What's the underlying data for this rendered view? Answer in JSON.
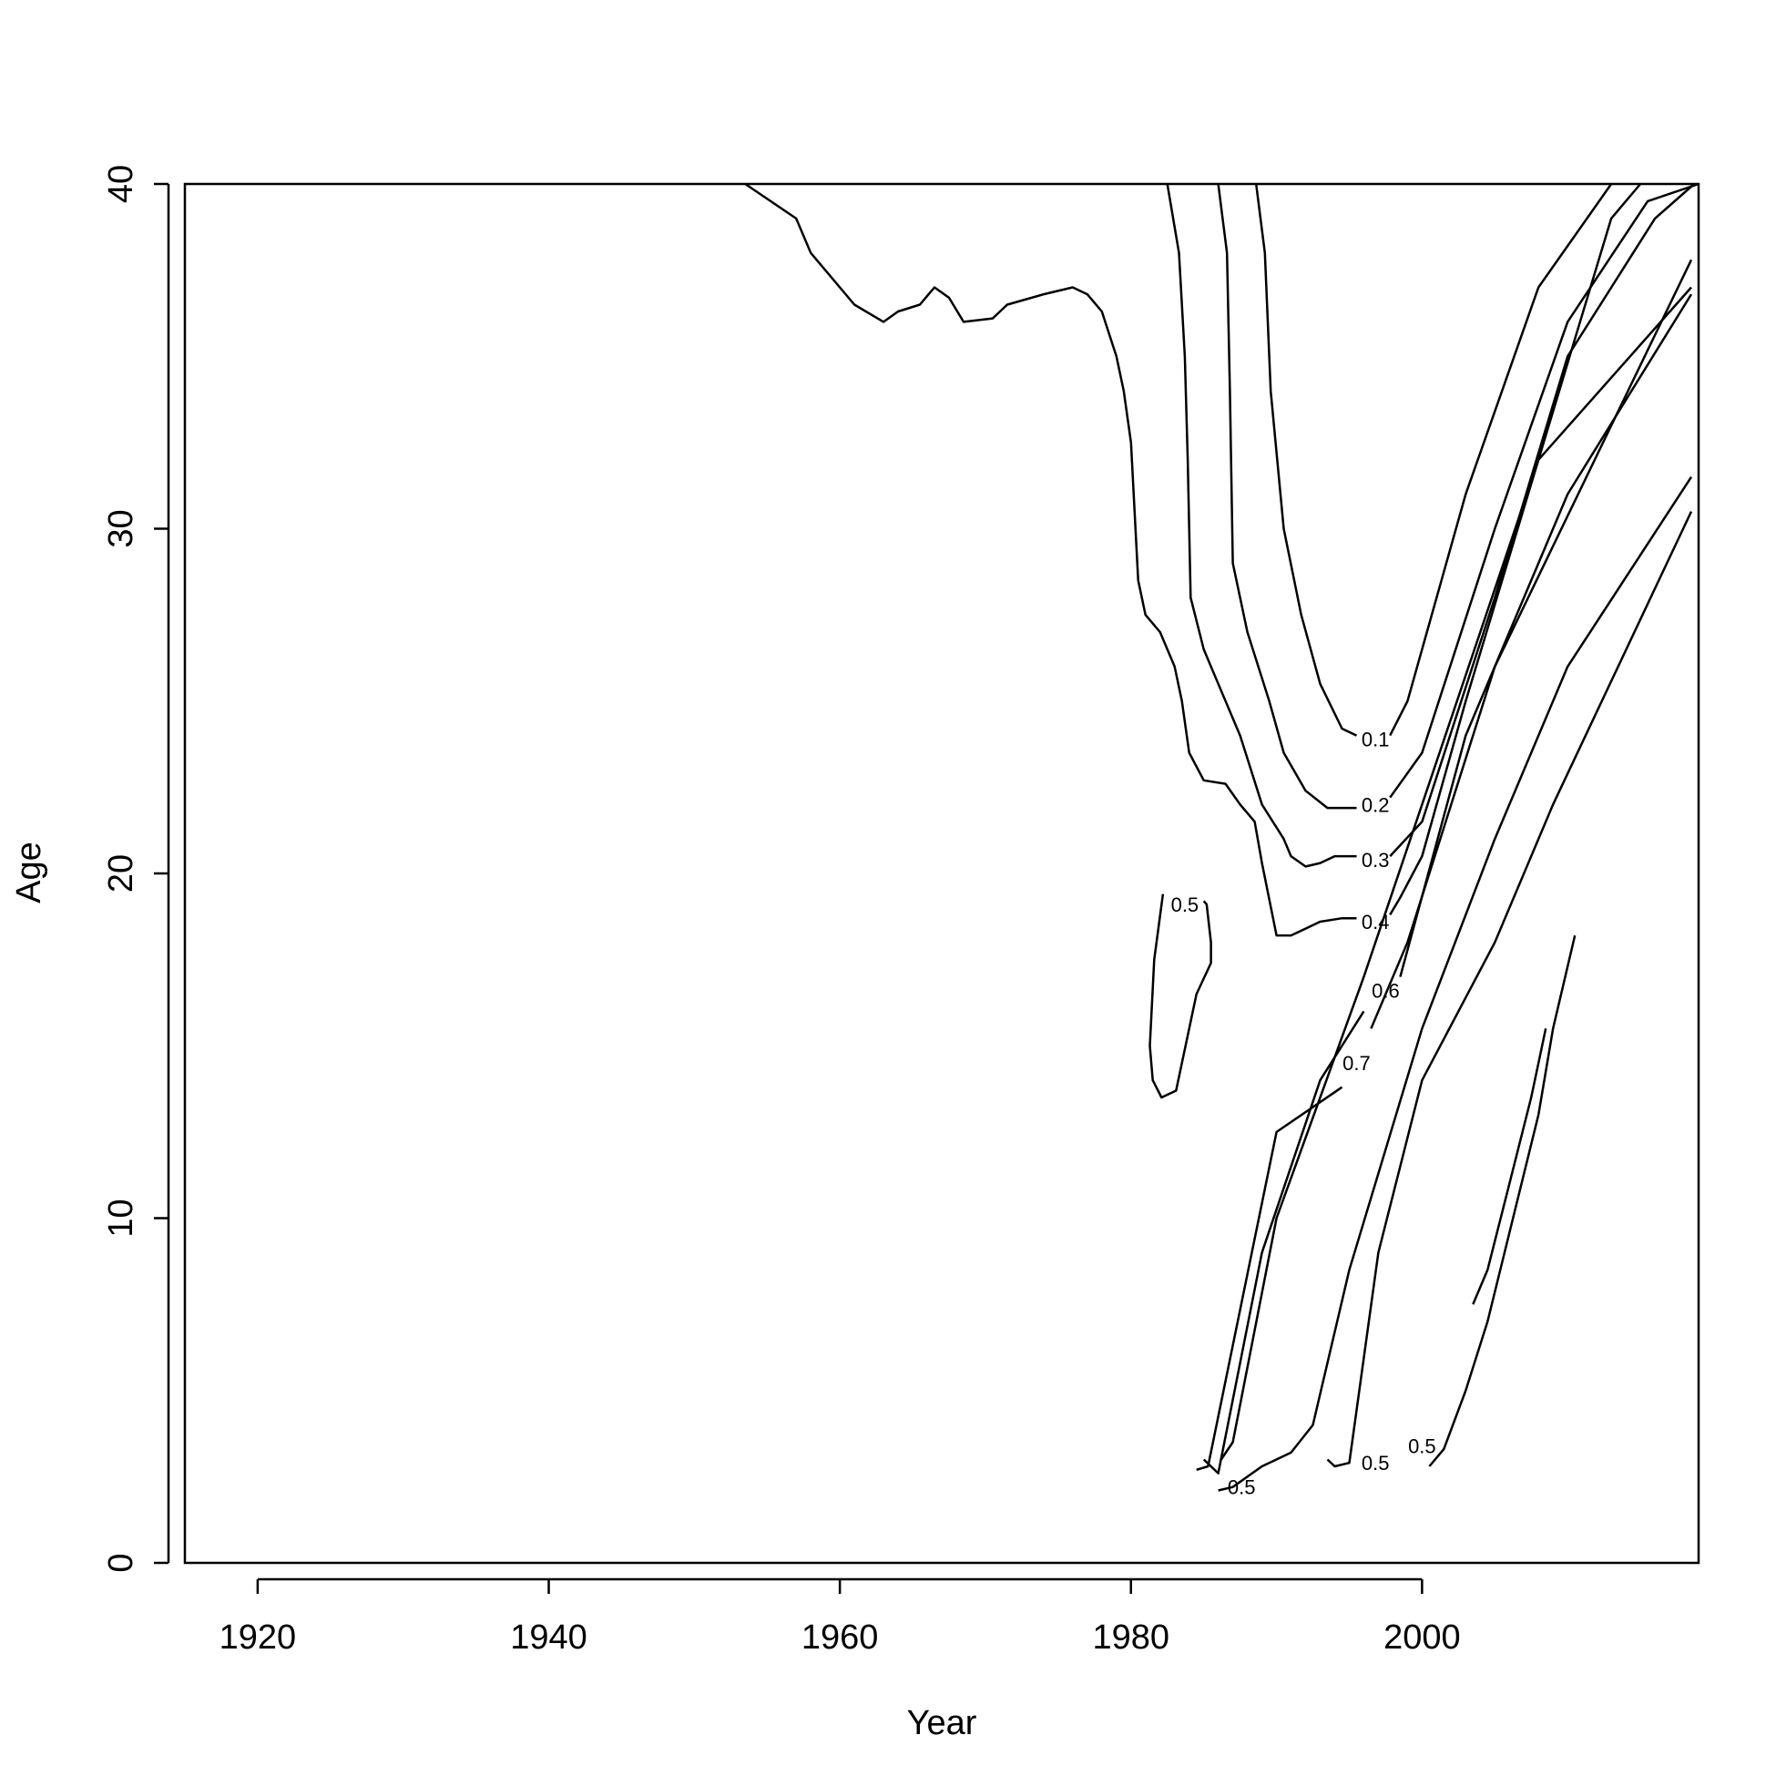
{
  "chart_data": {
    "type": "contour",
    "title": "",
    "xlabel": "Year",
    "ylabel": "Age",
    "xlim": [
      1915,
      2019
    ],
    "ylim": [
      0,
      40
    ],
    "x_ticks": [
      1920,
      1940,
      1960,
      1980,
      2000
    ],
    "y_ticks": [
      0,
      10,
      20,
      30,
      40
    ],
    "grid": false,
    "legend": "none",
    "contour_levels": [
      "0.1",
      "0.2",
      "0.3",
      "0.4",
      "0.5",
      "0.6",
      "0.7"
    ],
    "contours": [
      {
        "level": "",
        "points": [
          [
            1953.5,
            40
          ],
          [
            1957,
            39
          ],
          [
            1958,
            38
          ],
          [
            1961,
            36.5
          ],
          [
            1963,
            36
          ],
          [
            1964,
            36.3
          ],
          [
            1965.5,
            36.5
          ],
          [
            1966.5,
            37
          ],
          [
            1967.5,
            36.7
          ],
          [
            1968.5,
            36
          ],
          [
            1970.5,
            36.1
          ],
          [
            1971.5,
            36.5
          ],
          [
            1974,
            36.8
          ],
          [
            1976,
            37
          ],
          [
            1977,
            36.8
          ],
          [
            1978,
            36.3
          ],
          [
            1979,
            35
          ],
          [
            1979.5,
            34
          ],
          [
            1980,
            32.5
          ],
          [
            1980.5,
            28.5
          ],
          [
            1981,
            27.5
          ],
          [
            1982,
            27
          ],
          [
            1983,
            26
          ],
          [
            1983.5,
            25
          ],
          [
            1984,
            23.5
          ],
          [
            1985,
            22.7
          ],
          [
            1986.5,
            22.6
          ],
          [
            1987.5,
            22
          ],
          [
            1988.5,
            21.5
          ],
          [
            1989,
            20.3
          ],
          [
            1990,
            18.2
          ],
          [
            1991,
            18.2
          ],
          [
            1992,
            18.4
          ],
          [
            1993,
            18.6
          ],
          [
            1994.5,
            18.7
          ],
          [
            1995.5,
            18.7
          ]
        ]
      },
      {
        "level": "0.4",
        "label_at": [
          1996.8,
          18.6
        ],
        "points": [
          [
            1997.8,
            18.8
          ],
          [
            1998.5,
            19.3
          ],
          [
            2000,
            20.5
          ],
          [
            2003,
            25
          ],
          [
            2008,
            32
          ],
          [
            2013,
            39
          ],
          [
            2015,
            40
          ]
        ]
      },
      {
        "level": "",
        "points": [
          [
            1982.5,
            40
          ],
          [
            1983.3,
            38
          ],
          [
            1983.7,
            35
          ],
          [
            1983.9,
            32
          ],
          [
            1984.1,
            28
          ],
          [
            1985,
            26.5
          ],
          [
            1986,
            25.5
          ],
          [
            1987.5,
            24
          ],
          [
            1989,
            22
          ],
          [
            1990.5,
            21
          ],
          [
            1991,
            20.5
          ],
          [
            1992,
            20.2
          ],
          [
            1993,
            20.3
          ],
          [
            1994,
            20.5
          ],
          [
            1995.5,
            20.5
          ]
        ]
      },
      {
        "level": "0.3",
        "label_at": [
          1996.8,
          20.4
        ],
        "points": [
          [
            1997.8,
            20.5
          ],
          [
            2000,
            21.5
          ],
          [
            2005,
            28
          ],
          [
            2010,
            35
          ],
          [
            2016,
            39
          ],
          [
            2018.7,
            40
          ]
        ]
      },
      {
        "level": "",
        "points": [
          [
            1986,
            40
          ],
          [
            1986.6,
            38
          ],
          [
            1986.8,
            34
          ],
          [
            1987,
            29
          ],
          [
            1988,
            27
          ],
          [
            1989.5,
            25
          ],
          [
            1990.5,
            23.5
          ],
          [
            1992,
            22.4
          ],
          [
            1993.5,
            21.9
          ],
          [
            1995.5,
            21.9
          ]
        ]
      },
      {
        "level": "0.2",
        "label_at": [
          1996.8,
          22.0
        ],
        "points": [
          [
            1997.8,
            22.2
          ],
          [
            2000,
            23.5
          ],
          [
            2005,
            30
          ],
          [
            2010,
            36
          ],
          [
            2015.5,
            39.5
          ],
          [
            2019,
            40
          ]
        ]
      },
      {
        "level": "",
        "points": [
          [
            1988.6,
            40
          ],
          [
            1989.2,
            38
          ],
          [
            1989.6,
            34
          ],
          [
            1990.5,
            30
          ],
          [
            1991.7,
            27.5
          ],
          [
            1993,
            25.5
          ],
          [
            1994.5,
            24.2
          ],
          [
            1995.5,
            24
          ]
        ]
      },
      {
        "level": "0.1",
        "label_at": [
          1996.8,
          23.9
        ],
        "points": [
          [
            1997.8,
            24
          ],
          [
            1999,
            25
          ],
          [
            2003,
            31
          ],
          [
            2008,
            37
          ],
          [
            2013,
            40
          ]
        ]
      },
      {
        "level": "0.5",
        "label_at": [
          1983.7,
          19.1
        ],
        "points": [
          [
            1982.2,
            19.4
          ],
          [
            1981.6,
            17.5
          ],
          [
            1981.3,
            15
          ],
          [
            1981.5,
            14
          ],
          [
            1982.1,
            13.5
          ],
          [
            1983.1,
            13.7
          ],
          [
            1984.5,
            16.5
          ],
          [
            1985.5,
            17.4
          ],
          [
            1985.5,
            18
          ],
          [
            1985.2,
            19.1
          ],
          [
            1985,
            19.2
          ]
        ]
      },
      {
        "level": "0.7",
        "label_at": [
          1995.5,
          14.5
        ],
        "points": [
          [
            1984.5,
            2.7
          ],
          [
            1985.3,
            2.8
          ],
          [
            1990,
            12.5
          ],
          [
            1994.5,
            13.8
          ]
        ]
      },
      {
        "level": "",
        "points": [
          [
            1996.5,
            15.5
          ],
          [
            1999,
            18
          ],
          [
            2005,
            26
          ],
          [
            2018.5,
            37.8
          ]
        ]
      },
      {
        "level": "0.6",
        "label_at": [
          1997.5,
          16.6
        ],
        "points": [
          [
            1985,
            3
          ],
          [
            1986,
            2.6
          ],
          [
            1989,
            9
          ],
          [
            1993,
            14
          ],
          [
            1996,
            16
          ]
        ]
      },
      {
        "level": "",
        "points": [
          [
            1998.5,
            17
          ],
          [
            2003,
            24
          ],
          [
            2010,
            31
          ],
          [
            2018.5,
            36.8
          ]
        ]
      },
      {
        "level": "",
        "points": [
          [
            1986.2,
            3
          ],
          [
            1987,
            3.5
          ],
          [
            1990,
            10
          ],
          [
            1996,
            17
          ],
          [
            2000,
            22
          ],
          [
            2008,
            32
          ],
          [
            2018.5,
            37
          ]
        ]
      },
      {
        "level": "0.5",
        "label_at": [
          1987.6,
          2.2
        ],
        "points": [
          [
            1986,
            2.1
          ],
          [
            1987,
            2.2
          ],
          [
            1989,
            2.8
          ],
          [
            1991,
            3.2
          ],
          [
            1992.5,
            4
          ],
          [
            1995,
            8.5
          ],
          [
            2000,
            15.5
          ],
          [
            2005,
            21
          ],
          [
            2010,
            26
          ],
          [
            2018.5,
            31.5
          ]
        ]
      },
      {
        "level": "0.5",
        "label_at": [
          1996.8,
          2.9
        ],
        "points": [
          [
            1993.5,
            3
          ],
          [
            1994,
            2.8
          ],
          [
            1995,
            2.9
          ],
          [
            1997,
            9
          ],
          [
            2000,
            14
          ],
          [
            2005,
            18
          ],
          [
            2009,
            22
          ],
          [
            2018.5,
            30.5
          ]
        ]
      },
      {
        "level": "0.5",
        "label_at": [
          2000,
          3.4
        ],
        "points": [
          [
            2000.5,
            2.8
          ],
          [
            2001.5,
            3.3
          ],
          [
            2003,
            5
          ],
          [
            2004.5,
            7
          ],
          [
            2008,
            13
          ],
          [
            2009,
            15.5
          ],
          [
            2010.5,
            18.2
          ]
        ]
      },
      {
        "level": "",
        "points": [
          [
            2003.5,
            7.5
          ],
          [
            2004.5,
            8.5
          ],
          [
            2006,
            11
          ],
          [
            2007.5,
            13.5
          ],
          [
            2008,
            14.5
          ],
          [
            2008.5,
            15.5
          ]
        ]
      }
    ]
  }
}
